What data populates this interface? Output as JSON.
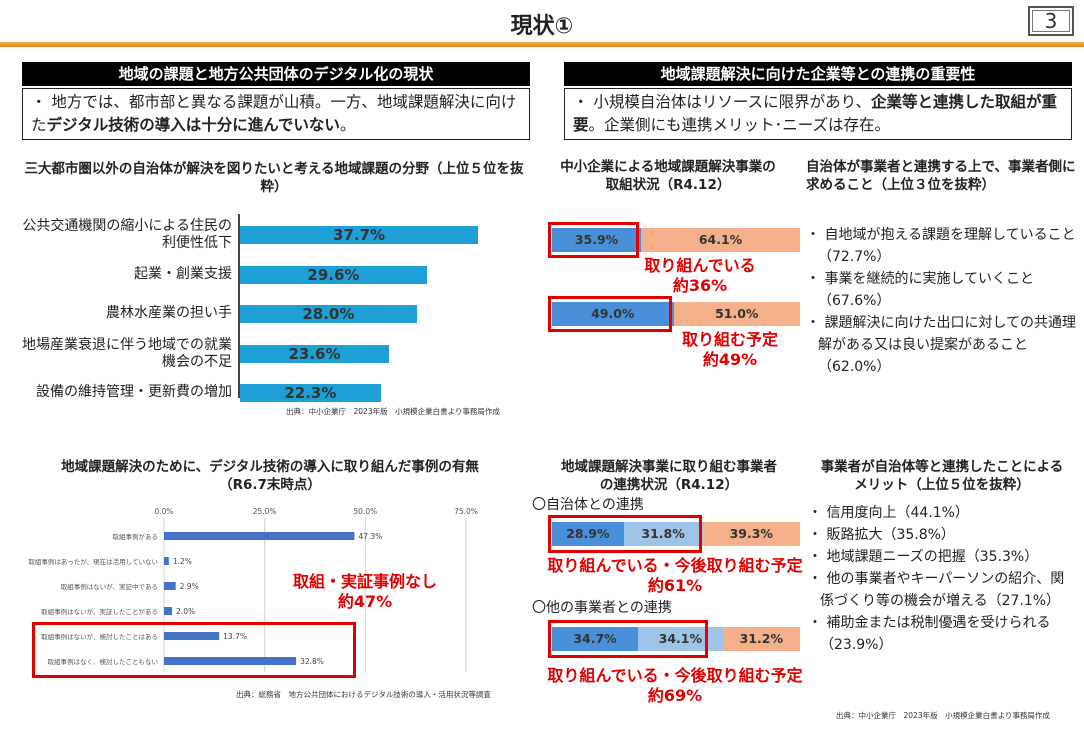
{
  "header": {
    "title": "現状①",
    "page_number": "3"
  },
  "left_section": {
    "heading": "地域の課題と地方公共団体のデジタル化の現状",
    "summary_pre": "・ 地方では、都市部と異なる課題が山積。一方、地域課題解決に向けた",
    "summary_bold": "デジタル技術の導入は十分に進んでいない",
    "summary_post": "。"
  },
  "right_section": {
    "heading": "地域課題解決に向けた企業等との連携の重要性",
    "summary_pre": "・ 小規模自治体はリソースに限界があり、",
    "summary_bold": "企業等と連携した取組が重要",
    "summary_post": "。企業側にも連携メリット･ニーズは存在。"
  },
  "chart1": {
    "title": "三大都市圏以外の自治体が解決を図りたいと考える地域課題の分野（上位５位を抜粋）",
    "source": "出典：中小企業庁　2023年版　小規模企業白書より事務局作成"
  },
  "chart2": {
    "title": "地域課題解決のために、デジタル技術の導入に取り組んだ事例の有無（R6.7末時点）",
    "ticks": [
      "0.0%",
      "25.0%",
      "50.0%",
      "75.0%"
    ],
    "callout_line1": "取組・実証事例なし",
    "callout_line2": "約47%",
    "source": "出典：総務省　地方公共団体におけるデジタル技術の導入・活用状況等調査"
  },
  "chart3": {
    "title": "中小企業による地域課題解決事業の取組状況（R4.12）",
    "callout1_line1": "取り組んでいる",
    "callout1_line2": "約36%",
    "callout2_line1": "取り組む予定",
    "callout2_line2": "約49%"
  },
  "needs_list": {
    "title": "自治体が事業者と連携する上で、事業者側に求めること（上位３位を抜粋）",
    "items": [
      "・ 自地域が抱える課題を理解していること（72.7%）",
      "・ 事業を継続的に実施していくこと（67.6%）",
      "・ 課題解決に向けた出口に対しての共通理解がある又は良い提案があること（62.0%）"
    ]
  },
  "chart4": {
    "title": "地域課題解決事業に取り組む事業者の連携状況（R4.12）",
    "group1_label": "〇自治体との連携",
    "group2_label": "〇他の事業者との連携",
    "callout1_line1": "取り組んでいる・今後取り組む予定",
    "callout1_line2": "約61%",
    "callout2_line1": "取り組んでいる・今後取り組む予定",
    "callout2_line2": "約69%"
  },
  "merits_list": {
    "title": "事業者が自治体等と連携したことによるメリット（上位５位を抜粋）",
    "items": [
      "・ 信用度向上（44.1%）",
      "・ 販路拡大（35.8%）",
      "・ 地域課題ニーズの把握（35.3%）",
      "・ 他の事業者やキーパーソンの紹介、関係づくり等の機会が増える（27.1%）",
      "・ 補助金または税制優遇を受けられる（23.9%）"
    ],
    "source": "出典：中小企業庁　2023年版　小規模企業白書より事務局作成"
  },
  "chart_data": [
    {
      "type": "bar",
      "orientation": "horizontal",
      "categories": [
        "公共交通機関の縮小による住民の利便性低下",
        "起業・創業支援",
        "農林水産業の担い手",
        "地場産業衰退に伴う地域での就業機会の不足",
        "設備の維持管理・更新費の増加"
      ],
      "values": [
        37.7,
        29.6,
        28.0,
        23.6,
        22.3
      ],
      "value_labels": [
        "37.7%",
        "29.6%",
        "28.0%",
        "23.6%",
        "22.3%"
      ],
      "unit": "%",
      "color": "#1ea0d6"
    },
    {
      "type": "bar",
      "orientation": "horizontal",
      "categories": [
        "取組事例がある",
        "取組事例はあったが、現在は活用していない",
        "取組事例はないが、実証中である",
        "取組事例はないが、実証したことがある",
        "取組事例はないが、検討したことはある",
        "取組事例はなく、検討したこともない"
      ],
      "values": [
        47.3,
        1.2,
        2.9,
        2.0,
        13.7,
        32.8
      ],
      "value_labels": [
        "47.3%",
        "1.2%",
        "2.9%",
        "2.0%",
        "13.7%",
        "32.8%"
      ],
      "xlim": [
        0,
        75
      ],
      "ticks": [
        0,
        25,
        50,
        75
      ],
      "color": "#4472c4"
    },
    {
      "type": "bar",
      "stacked": true,
      "orientation": "horizontal",
      "rows": [
        {
          "segments": [
            {
              "value": 35.9,
              "label": "35.9%"
            },
            {
              "value": 64.1,
              "label": "64.1%"
            }
          ]
        },
        {
          "segments": [
            {
              "value": 49.0,
              "label": "49.0%"
            },
            {
              "value": 51.0,
              "label": "51.0%"
            }
          ]
        }
      ],
      "colors": [
        "#4a90d9",
        "#f4b08a"
      ]
    },
    {
      "type": "bar",
      "stacked": true,
      "orientation": "horizontal",
      "rows": [
        {
          "segments": [
            {
              "value": 28.9,
              "label": "28.9%"
            },
            {
              "value": 31.8,
              "label": "31.8%"
            },
            {
              "value": 39.3,
              "label": "39.3%"
            }
          ]
        },
        {
          "segments": [
            {
              "value": 34.7,
              "label": "34.7%"
            },
            {
              "value": 34.1,
              "label": "34.1%"
            },
            {
              "value": 31.2,
              "label": "31.2%"
            }
          ]
        }
      ],
      "colors": [
        "#4a90d9",
        "#9dc3e6",
        "#f4b08a"
      ]
    }
  ]
}
